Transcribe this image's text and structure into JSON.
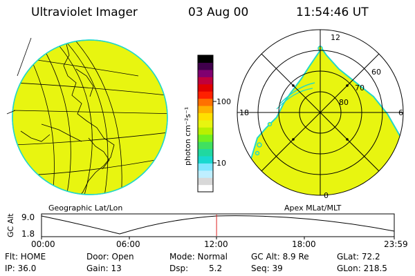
{
  "header": {
    "instrument": "Ultraviolet Imager",
    "date": "03 Aug 00",
    "time": "11:54:46 UT"
  },
  "colors": {
    "fill": "#e8f510",
    "fill_edge": "#22d7c8",
    "line": "#000000",
    "marker": "#dd2222"
  },
  "geo_panel": {
    "label": "Geographic Lat/Lon"
  },
  "colorbar": {
    "unit_label": "photon cm⁻²s⁻¹",
    "tick_100": "100",
    "tick_10": "10",
    "scale": "log",
    "colors": [
      "#ffffff",
      "#d8d8d8",
      "#bfefff",
      "#7fe7ff",
      "#18d8d0",
      "#20d8a0",
      "#40e060",
      "#70f020",
      "#b8f000",
      "#e8f510",
      "#ffe000",
      "#ffb000",
      "#ff7000",
      "#ff2000",
      "#e00000",
      "#c0003c",
      "#800070",
      "#40004c",
      "#000000"
    ]
  },
  "polar_panel": {
    "label": "Apex MLat/MLT",
    "mlt_top": "12",
    "mlt_left": "18",
    "mlt_right": "6",
    "mlt_bottom": "0",
    "lat_60": "60",
    "lat_70": "70",
    "lat_80": "80"
  },
  "timeline": {
    "ylabel": "GC Alt",
    "y_top": "9.0",
    "y_bottom": "1.8",
    "x_ticks": [
      "00:00",
      "06:00",
      "12:00",
      "18:00",
      "23:59"
    ],
    "current_time_hours": 11.91
  },
  "info": {
    "flt": "Flt: HOME",
    "ip": "IP: 36.0",
    "door": "Door: Open",
    "gain": "Gain: 13",
    "mode": "Mode: Normal",
    "dsp_label": "Dsp:",
    "dsp_value": "5.2",
    "gc_alt": "GC Alt: 8.9 Re",
    "seq": "Seq: 39",
    "glat": "GLat:  72.2",
    "glon": "GLon: 218.5"
  }
}
